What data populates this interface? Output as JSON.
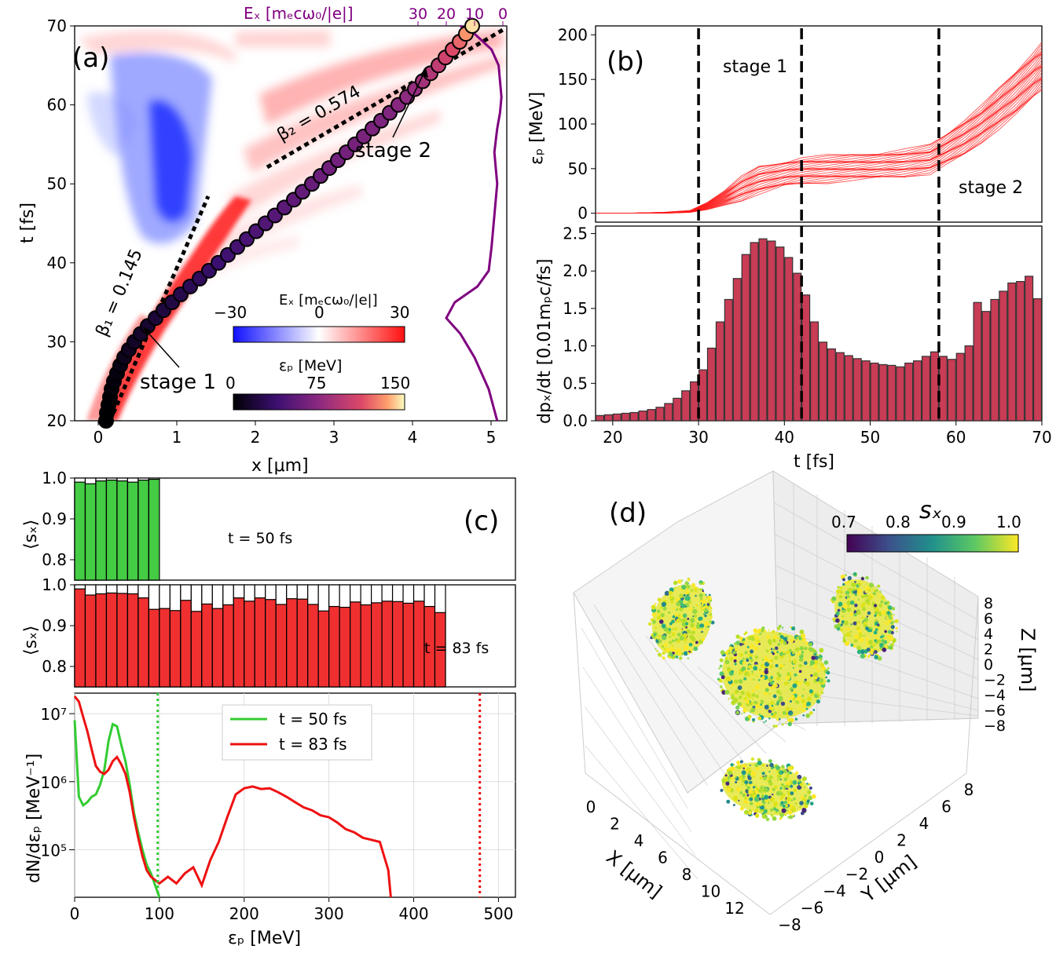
{
  "colors": {
    "ex_neg": "#2030ff",
    "ex_pos": "#ff2020",
    "trajectory_line": "#800080",
    "traj_curve_b": "#ff1a1a",
    "bar_b": "#c83c55",
    "bar_green": "#44cc44",
    "bar_red": "#f03030",
    "line_green": "#33cc33",
    "line_red": "#ee1111"
  },
  "panels": {
    "a": {
      "label": "(a)",
      "xlabel": "x [μm]",
      "ylabel": "t [fs]",
      "top_label": "Eₓ [mₑcω₀/|e|]",
      "beta1": "β₁ = 0.145",
      "beta2": "β₂ = 0.574",
      "stage1": "stage 1",
      "stage2": "stage 2",
      "cbar_ex_label": "Eₓ  [mₑcω₀/|e|]",
      "cbar_ep_label": "εₚ  [MeV]",
      "cbar_ex_ticks": [
        "−30",
        "0",
        "30"
      ],
      "cbar_ep_ticks": [
        "0",
        "75",
        "150"
      ]
    },
    "b": {
      "label": "(b)",
      "stage1": "stage 1",
      "stage2": "stage 2",
      "ylabel_top": "εₚ [MeV]",
      "ylabel_bottom": "dpₓ/dt [0.01mₚc/fs]",
      "xlabel": "t [fs]"
    },
    "c": {
      "label": "(c)",
      "ylabel_sx": "⟨sₓ⟩",
      "t50": "t = 50 fs",
      "t83": "t = 83 fs",
      "ylabel_spec": "dN/dεₚ  [MeV⁻¹]",
      "xlabel": "εₚ   [MeV]",
      "legend": [
        "t = 50 fs",
        "t = 83 fs"
      ]
    },
    "d": {
      "label": "(d)",
      "cbar_label": "sₓ",
      "cbar_ticks": [
        "0.7",
        "0.8",
        "0.9",
        "1.0"
      ],
      "xlabel": "X [μm]",
      "ylabel": "Y [μm]",
      "zlabel": "Z [μm]",
      "x_ticks": [
        "0",
        "2",
        "4",
        "6",
        "8",
        "10",
        "12"
      ],
      "y_ticks": [
        "−8",
        "−6",
        "−4",
        "−2",
        "0",
        "2",
        "4",
        "6",
        "8"
      ],
      "z_ticks": [
        "8",
        "6",
        "4",
        "2",
        "0",
        "−2",
        "−4",
        "−6",
        "−8"
      ]
    }
  },
  "chart_data": [
    {
      "id": "a",
      "type": "heatmap",
      "title": "(a)",
      "xlabel": "x [μm]",
      "ylabel": "t [fs]",
      "xlim": [
        -0.3,
        5.2
      ],
      "ylim": [
        20,
        70
      ],
      "x_ticks": [
        0,
        1,
        2,
        3,
        4,
        5
      ],
      "y_ticks": [
        20,
        30,
        40,
        50,
        60,
        70
      ],
      "top_axis_ticks": [
        "30",
        "20",
        "10",
        "0"
      ],
      "trajectory": {
        "t": [
          20,
          21,
          22,
          23,
          24,
          25,
          26,
          27,
          28,
          29,
          30,
          31,
          32,
          33,
          34,
          35,
          36,
          37,
          38,
          39,
          40,
          41,
          42,
          43,
          44,
          45,
          46,
          47,
          48,
          49,
          50,
          51,
          52,
          53,
          54,
          55,
          56,
          57,
          58,
          59,
          60,
          61,
          62,
          63,
          64,
          65,
          66,
          67,
          68,
          69,
          70
        ],
        "x": [
          0.1,
          0.11,
          0.13,
          0.15,
          0.17,
          0.2,
          0.24,
          0.28,
          0.33,
          0.39,
          0.46,
          0.54,
          0.63,
          0.73,
          0.83,
          0.94,
          1.05,
          1.17,
          1.29,
          1.41,
          1.53,
          1.65,
          1.77,
          1.89,
          2.01,
          2.13,
          2.25,
          2.37,
          2.49,
          2.6,
          2.72,
          2.83,
          2.94,
          3.05,
          3.16,
          3.27,
          3.38,
          3.49,
          3.6,
          3.71,
          3.82,
          3.93,
          4.03,
          4.13,
          4.23,
          4.33,
          4.42,
          4.51,
          4.6,
          4.68,
          4.76
        ],
        "energy_mev": [
          0,
          0,
          0,
          1,
          2,
          3,
          4,
          6,
          8,
          10,
          12,
          14,
          16,
          18,
          20,
          22,
          25,
          28,
          31,
          34,
          37,
          40,
          42,
          44,
          46,
          48,
          50,
          52,
          54,
          56,
          58,
          60,
          62,
          63,
          64,
          65,
          66,
          67,
          68,
          70,
          72,
          76,
          80,
          86,
          92,
          98,
          105,
          112,
          120,
          132,
          145
        ]
      },
      "ex_lineout": {
        "t": [
          20,
          24,
          28,
          31,
          33,
          35,
          37,
          39,
          42,
          46,
          50,
          54,
          57,
          59,
          61,
          63,
          65,
          67,
          69,
          70
        ],
        "ex": [
          2,
          5,
          10,
          15,
          20,
          17,
          9,
          5,
          4,
          3,
          2,
          3,
          2,
          1,
          0.5,
          1,
          1.5,
          4,
          10,
          15
        ]
      },
      "fits": [
        {
          "name": "β₁ = 0.145",
          "beta": 0.145
        },
        {
          "name": "β₂ = 0.574",
          "beta": 0.574
        }
      ],
      "colorbar_ex": {
        "min": -30,
        "max": 30
      },
      "colorbar_ep": {
        "min": 0,
        "max": 150
      }
    },
    {
      "id": "b_top",
      "type": "line",
      "ylabel": "εₚ [MeV]",
      "xlim": [
        18,
        70
      ],
      "ylim": [
        -10,
        210
      ],
      "y_ticks": [
        0,
        50,
        100,
        150,
        200
      ],
      "stage_lines_t": [
        30,
        42,
        58
      ],
      "series_envelope": {
        "t": [
          18,
          22,
          26,
          29,
          31,
          33,
          35,
          37,
          40,
          42,
          45,
          48,
          51,
          54,
          57,
          59,
          61,
          63,
          65,
          67,
          69,
          70
        ],
        "low": [
          0,
          0,
          0,
          1,
          4,
          9,
          15,
          22,
          30,
          33,
          35,
          37,
          39,
          41,
          45,
          55,
          65,
          80,
          95,
          110,
          130,
          140
        ],
        "high": [
          0,
          0,
          1,
          3,
          12,
          25,
          40,
          52,
          58,
          62,
          64,
          66,
          68,
          71,
          76,
          90,
          105,
          120,
          140,
          160,
          180,
          190
        ]
      }
    },
    {
      "id": "b_bottom",
      "type": "bar",
      "xlabel": "t [fs]",
      "ylabel": "dpₓ/dt [0.01mₚc/fs]",
      "xlim": [
        18,
        70
      ],
      "ylim": [
        0,
        2.6
      ],
      "x_ticks": [
        20,
        30,
        40,
        50,
        60,
        70
      ],
      "y_ticks": [
        0.0,
        0.5,
        1.0,
        1.5,
        2.0,
        2.5
      ],
      "t": [
        18.5,
        19.5,
        20.5,
        21.5,
        22.5,
        23.5,
        24.5,
        25.5,
        26.5,
        27.5,
        28.5,
        29.5,
        30.5,
        31.5,
        32.5,
        33.5,
        34.5,
        35.5,
        36.5,
        37.5,
        38.5,
        39.5,
        40.5,
        41.5,
        42.5,
        43.5,
        44.5,
        45.5,
        46.5,
        47.5,
        48.5,
        49.5,
        50.5,
        51.5,
        52.5,
        53.5,
        54.5,
        55.5,
        56.5,
        57.5,
        58.5,
        59.5,
        60.5,
        61.5,
        62.5,
        63.5,
        64.5,
        65.5,
        66.5,
        67.5,
        68.5,
        69.5
      ],
      "values": [
        0.07,
        0.08,
        0.09,
        0.1,
        0.11,
        0.13,
        0.15,
        0.18,
        0.23,
        0.3,
        0.4,
        0.52,
        0.68,
        0.97,
        1.32,
        1.62,
        1.9,
        2.22,
        2.38,
        2.43,
        2.4,
        2.32,
        2.18,
        1.97,
        1.68,
        1.32,
        1.05,
        0.96,
        0.91,
        0.87,
        0.83,
        0.8,
        0.77,
        0.75,
        0.74,
        0.72,
        0.77,
        0.8,
        0.86,
        0.92,
        0.86,
        0.82,
        0.9,
        1.0,
        1.58,
        1.46,
        1.62,
        1.73,
        1.84,
        1.86,
        1.93,
        1.63
      ],
      "stage_lines_t": [
        30,
        42,
        58
      ]
    },
    {
      "id": "c_sx_50",
      "type": "bar",
      "ylabel": "⟨sₓ⟩",
      "xlim": [
        0,
        520
      ],
      "ylim": [
        0.75,
        1.0
      ],
      "y_ticks": [
        0.8,
        0.9,
        1.0
      ],
      "bin_width": 12.5,
      "bin_start": [
        0,
        12.5,
        25,
        37.5,
        50,
        62.5,
        75,
        87.5
      ],
      "values": [
        0.99,
        0.986,
        0.993,
        0.995,
        0.993,
        0.99,
        0.995,
        0.997
      ]
    },
    {
      "id": "c_sx_83",
      "type": "bar",
      "ylabel": "⟨sₓ⟩",
      "xlim": [
        0,
        520
      ],
      "ylim": [
        0.75,
        1.0
      ],
      "y_ticks": [
        0.8,
        0.9,
        1.0
      ],
      "bin_width": 12.5,
      "values": [
        0.99,
        0.975,
        0.978,
        0.98,
        0.979,
        0.978,
        0.968,
        0.94,
        0.942,
        0.937,
        0.962,
        0.935,
        0.953,
        0.942,
        0.951,
        0.968,
        0.96,
        0.968,
        0.964,
        0.952,
        0.966,
        0.965,
        0.952,
        0.936,
        0.947,
        0.945,
        0.958,
        0.951,
        0.956,
        0.96,
        0.959,
        0.955,
        0.96,
        0.947,
        0.932
      ]
    },
    {
      "id": "c_spectrum",
      "type": "line",
      "xlabel": "εₚ   [MeV]",
      "ylabel": "dN/dεₚ  [MeV⁻¹]",
      "xlim": [
        0,
        520
      ],
      "ylim_log": [
        20000,
        20000000
      ],
      "x_ticks": [
        0,
        100,
        200,
        300,
        400,
        500
      ],
      "y_ticks": [
        "10⁵",
        "10⁶",
        "10⁷"
      ],
      "cutoff_lines": [
        98,
        478
      ],
      "series": [
        {
          "name": "t = 50 fs",
          "x": [
            0,
            5,
            10,
            15,
            20,
            25,
            30,
            35,
            40,
            45,
            50,
            55,
            60,
            65,
            70,
            75,
            80,
            85,
            90,
            95,
            100
          ],
          "values": [
            8000000,
            600000,
            450000,
            500000,
            600000,
            650000,
            900000,
            1500000,
            4000000,
            7000000,
            6500000,
            3500000,
            2000000,
            900000,
            350000,
            180000,
            100000,
            60000,
            45000,
            30000,
            20000
          ]
        },
        {
          "name": "t = 83 fs",
          "x": [
            0,
            5,
            10,
            15,
            20,
            25,
            30,
            35,
            40,
            45,
            50,
            55,
            60,
            65,
            70,
            75,
            80,
            85,
            90,
            100,
            110,
            120,
            130,
            140,
            150,
            160,
            170,
            180,
            190,
            200,
            210,
            220,
            230,
            240,
            250,
            260,
            270,
            280,
            290,
            300,
            310,
            320,
            330,
            340,
            350,
            360,
            370,
            373
          ],
          "values": [
            18000000,
            15000000,
            9000000,
            5500000,
            3000000,
            1700000,
            1400000,
            1300000,
            1500000,
            2000000,
            2300000,
            1800000,
            1300000,
            700000,
            300000,
            150000,
            80000,
            50000,
            40000,
            32000,
            40000,
            32000,
            45000,
            55000,
            30000,
            70000,
            130000,
            300000,
            650000,
            800000,
            850000,
            780000,
            800000,
            700000,
            600000,
            500000,
            420000,
            380000,
            320000,
            300000,
            250000,
            200000,
            180000,
            150000,
            140000,
            130000,
            50000,
            20000
          ]
        }
      ]
    },
    {
      "id": "d",
      "type": "scatter",
      "xlabel": "X [μm]",
      "ylabel": "Y [μm]",
      "zlabel": "Z [μm]",
      "xlim": [
        0,
        12
      ],
      "ylim": [
        -8,
        8
      ],
      "zlim": [
        -8,
        8
      ],
      "colorbar": {
        "min": 0.7,
        "max": 1.0,
        "label": "sₓ"
      }
    }
  ]
}
